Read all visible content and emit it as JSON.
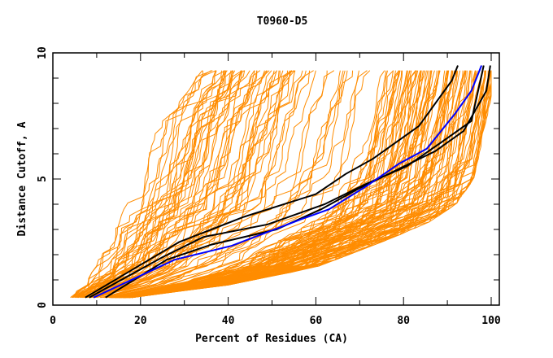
{
  "chart_data": {
    "type": "line",
    "title": "T0960-D5",
    "xlabel": "Percent of Residues (CA)",
    "ylabel": "Distance Cutoff, A",
    "xlim": [
      0,
      100
    ],
    "ylim": [
      0,
      10
    ],
    "x_ticks": [
      "0",
      "20",
      "40",
      "60",
      "80",
      "100"
    ],
    "y_ticks": [
      "0",
      "5",
      "10"
    ],
    "grid": false,
    "legend": "none",
    "colors": {
      "orange": "#ff8c00",
      "black": "#000000",
      "blue": "#0000ff"
    },
    "highlight_series": [
      {
        "name": "black-1",
        "color": "black",
        "x": [
          7.4,
          21,
          28.8,
          43.6,
          60,
          66.8,
          73,
          83.5,
          91,
          92.4
        ],
        "y": [
          0.3,
          1.7,
          2.5,
          3.5,
          4.4,
          5.2,
          5.8,
          7.1,
          8.9,
          9.5
        ]
      },
      {
        "name": "black-2",
        "color": "black",
        "x": [
          8.3,
          25,
          34.3,
          49,
          62,
          71.4,
          80.7,
          89,
          95.5,
          98.3
        ],
        "y": [
          0.3,
          1.9,
          2.7,
          3.2,
          4.0,
          4.8,
          5.5,
          6.5,
          7.3,
          9.5
        ]
      },
      {
        "name": "black-3",
        "color": "black",
        "x": [
          12,
          26,
          36.2,
          51,
          61.2,
          69.6,
          78.9,
          87.2,
          93.7,
          98.9,
          99.8
        ],
        "y": [
          0.3,
          1.8,
          2.4,
          3.0,
          3.8,
          4.6,
          5.4,
          6.1,
          6.9,
          8.5,
          9.5
        ]
      },
      {
        "name": "blue",
        "color": "blue",
        "x": [
          9.3,
          20.4,
          27.8,
          40.8,
          56.6,
          63,
          71.4,
          78.9,
          85.3,
          91.8,
          95.5,
          97.8
        ],
        "y": [
          0.3,
          1.2,
          1.8,
          2.35,
          3.4,
          3.8,
          4.7,
          5.6,
          6.2,
          7.6,
          8.5,
          9.5
        ]
      }
    ],
    "background_series": {
      "color": "orange",
      "count": 160,
      "description": "Many model curves, percent of residues vs distance cutoff, spanning x 4-100, y 0.3-9.5",
      "envelope_left": {
        "x": [
          4,
          8,
          11,
          13,
          17,
          20,
          23,
          27,
          33
        ],
        "y": [
          0.3,
          1.0,
          2.0,
          3.0,
          4.0,
          5.5,
          7.0,
          8.0,
          9.5
        ]
      },
      "envelope_right": {
        "x": [
          18,
          40,
          60,
          75,
          85,
          92,
          96,
          98,
          99
        ],
        "y": [
          0.3,
          0.8,
          1.5,
          2.5,
          3.2,
          4.0,
          5.0,
          7.0,
          9.5
        ]
      }
    }
  }
}
